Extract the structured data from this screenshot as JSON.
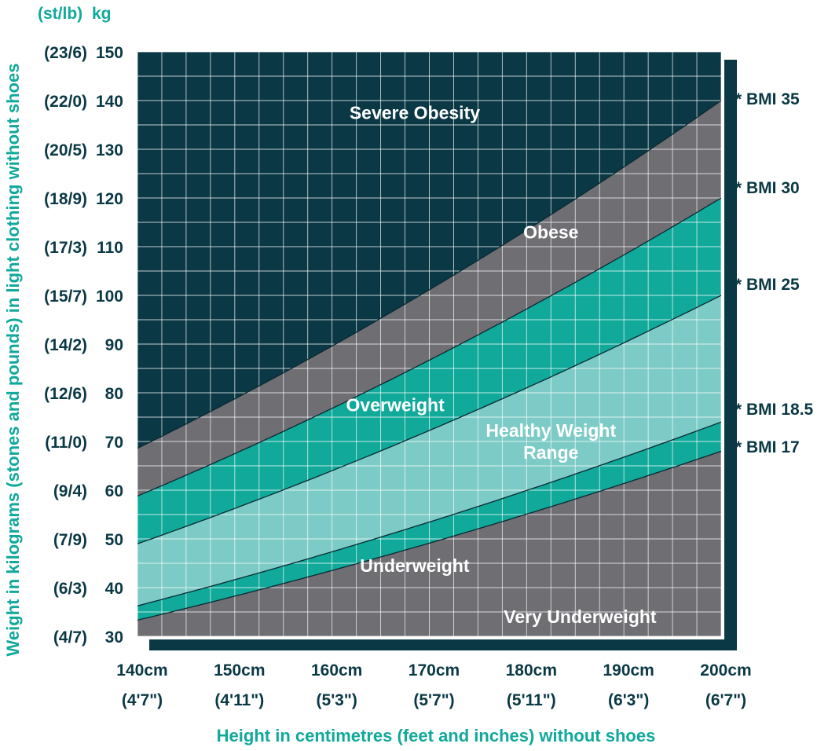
{
  "colors": {
    "severe": "#0a3845",
    "obese": "#6e6e73",
    "overweight": "#10a99a",
    "healthy": "#7dcbc6",
    "underweight": "#10a99a",
    "very_underweight": "#6e6e73",
    "teal_text": "#10a99a",
    "dark_text": "#0a3845",
    "grid": "#ffffff"
  },
  "chart_data": {
    "type": "area",
    "xlabel": "Height in centimetres (feet and inches) without shoes",
    "ylabel": "Weight in kilograms (stones and pounds) in light clothing without shoes",
    "y_unit_stlb": "(st/lb)",
    "y_unit_kg": "kg",
    "xlim": [
      140,
      200
    ],
    "ylim": [
      30,
      150
    ],
    "grid": true,
    "x_ticks": [
      {
        "value": 140,
        "cm": "140cm",
        "ft": "(4'7\")"
      },
      {
        "value": 150,
        "cm": "150cm",
        "ft": "(4'11\")"
      },
      {
        "value": 160,
        "cm": "160cm",
        "ft": "(5'3\")"
      },
      {
        "value": 170,
        "cm": "170cm",
        "ft": "(5'7\")"
      },
      {
        "value": 180,
        "cm": "180cm",
        "ft": "(5'11\")"
      },
      {
        "value": 190,
        "cm": "190cm",
        "ft": "(6'3\")"
      },
      {
        "value": 200,
        "cm": "200cm",
        "ft": "(6'7\")"
      }
    ],
    "y_ticks": [
      {
        "value": 150,
        "kg": "150",
        "stlb": "(23/6)"
      },
      {
        "value": 140,
        "kg": "140",
        "stlb": "(22/0)"
      },
      {
        "value": 130,
        "kg": "130",
        "stlb": "(20/5)"
      },
      {
        "value": 120,
        "kg": "120",
        "stlb": "(18/9)"
      },
      {
        "value": 110,
        "kg": "110",
        "stlb": "(17/3)"
      },
      {
        "value": 100,
        "kg": "100",
        "stlb": "(15/7)"
      },
      {
        "value": 90,
        "kg": "90",
        "stlb": "(14/2)"
      },
      {
        "value": 80,
        "kg": "80",
        "stlb": "(12/6)"
      },
      {
        "value": 70,
        "kg": "70",
        "stlb": "(11/0)"
      },
      {
        "value": 60,
        "kg": "60",
        "stlb": "(9/4)"
      },
      {
        "value": 50,
        "kg": "50",
        "stlb": "(7/9)"
      },
      {
        "value": 40,
        "kg": "40",
        "stlb": "(6/3)"
      },
      {
        "value": 30,
        "kg": "30",
        "stlb": "(4/7)"
      }
    ],
    "bmi_curves": [
      {
        "bmi": 35,
        "label": "* BMI 35"
      },
      {
        "bmi": 30,
        "label": "* BMI 30"
      },
      {
        "bmi": 25,
        "label": "* BMI 25"
      },
      {
        "bmi": 18.5,
        "label": "* BMI 18.5"
      },
      {
        "bmi": 17,
        "label": "* BMI 17"
      }
    ],
    "regions": [
      {
        "name": "Severe Obesity",
        "lines": [
          "Severe Obesity"
        ],
        "from_bmi": 35,
        "to_bmi": null
      },
      {
        "name": "Obese",
        "lines": [
          "Obese"
        ],
        "from_bmi": 30,
        "to_bmi": 35
      },
      {
        "name": "Overweight",
        "lines": [
          "Overweight"
        ],
        "from_bmi": 25,
        "to_bmi": 30
      },
      {
        "name": "Healthy Weight Range",
        "lines": [
          "Healthy Weight",
          "Range"
        ],
        "from_bmi": 18.5,
        "to_bmi": 25
      },
      {
        "name": "Underweight",
        "lines": [
          "Underweight"
        ],
        "from_bmi": 17,
        "to_bmi": 18.5
      },
      {
        "name": "Very Underweight",
        "lines": [
          "Very Underweight"
        ],
        "from_bmi": null,
        "to_bmi": 17
      }
    ]
  }
}
